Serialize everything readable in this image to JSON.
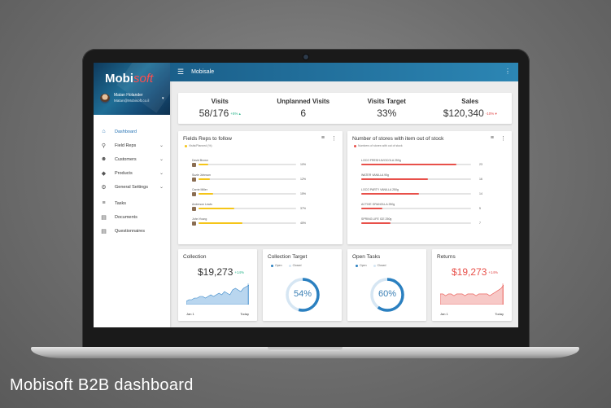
{
  "app": {
    "logo_main": "Mobi",
    "logo_accent": "soft",
    "title": "Mobisale",
    "user_name": "Matan Holander",
    "user_email": "Matan@Mobisoft.co.il"
  },
  "sidebar": {
    "items": [
      {
        "label": "Dashboard",
        "icon": "home-icon",
        "glyph": "⌂",
        "chevron": false
      },
      {
        "label": "Field Reps",
        "icon": "location-icon",
        "glyph": "⚲",
        "chevron": true
      },
      {
        "label": "Customers",
        "icon": "people-icon",
        "glyph": "☻",
        "chevron": true
      },
      {
        "label": "Products",
        "icon": "tag-icon",
        "glyph": "◆",
        "chevron": true
      },
      {
        "label": "General Settings",
        "icon": "gear-icon",
        "glyph": "⚙",
        "chevron": true
      },
      {
        "label": "Tasks",
        "icon": "tasks-icon",
        "glyph": "≡",
        "chevron": false
      },
      {
        "label": "Documents",
        "icon": "document-icon",
        "glyph": "▤",
        "chevron": false
      },
      {
        "label": "Questionnaires",
        "icon": "questionnaire-icon",
        "glyph": "▤",
        "chevron": false
      }
    ]
  },
  "kpis": [
    {
      "label": "Visits",
      "value": "58/176",
      "delta": "+5%",
      "trend": "up"
    },
    {
      "label": "Unplanned Visits",
      "value": "6",
      "delta": "",
      "trend": ""
    },
    {
      "label": "Visits Target",
      "value": "33%",
      "delta": "",
      "trend": ""
    },
    {
      "label": "Sales",
      "value": "$120,340",
      "delta": "-10%",
      "trend": "down"
    }
  ],
  "field_reps": {
    "title": "Fields Reps to follow",
    "legend": "Visits/Planned (%)",
    "color": "#f5c518",
    "rows": [
      {
        "name": "David Brown",
        "pct": 10,
        "label": "10%"
      },
      {
        "name": "Suzie Johnson",
        "pct": 12,
        "label": "12%"
      },
      {
        "name": "Carrie Miller",
        "pct": 15,
        "label": "15%"
      },
      {
        "name": "Anderson Lewis",
        "pct": 37,
        "label": "37%"
      },
      {
        "name": "John Young",
        "pct": 45,
        "label": "45%"
      }
    ]
  },
  "stores": {
    "title": "Number of stores with item out of stock",
    "legend": "Numbers of stores with out of stock",
    "color": "#e8504a",
    "max": 23,
    "rows": [
      {
        "name": "LOCO FRESH AVOCOLA 250g",
        "value": 23,
        "label": "23"
      },
      {
        "name": "WATER VANILLA 90g",
        "value": 16,
        "label": "16"
      },
      {
        "name": "LOCO PARTY VANILLA 250g",
        "value": 14,
        "label": "14"
      },
      {
        "name": "ACTIVE GRANOLLA 250g",
        "value": 5,
        "label": "5"
      },
      {
        "name": "SPRING LIFE ICE 250g",
        "value": 7,
        "label": "7"
      }
    ]
  },
  "collection": {
    "title": "Collection",
    "value": "$19,273",
    "delta": "+14%",
    "start_label": "Jan 1",
    "end_label": "Today",
    "color": "#3a88c8",
    "series": [
      2,
      3,
      3,
      4,
      4,
      5,
      5,
      4,
      5,
      6,
      5,
      6,
      7,
      6,
      8,
      7,
      6,
      9,
      10,
      9,
      8,
      10,
      11,
      12
    ]
  },
  "collection_target": {
    "title": "Collection Target",
    "legend_open": "Open",
    "legend_closed": "Closed",
    "pct": 54,
    "label": "54%",
    "open_color": "#2b80c0",
    "closed_color": "#d6e6f3"
  },
  "open_tasks": {
    "title": "Open Tasks",
    "legend_open": "Open",
    "legend_closed": "Closed",
    "pct": 60,
    "label": "60%",
    "open_color": "#2b80c0",
    "closed_color": "#d6e6f3"
  },
  "returns": {
    "title": "Returns",
    "value": "$19,273",
    "delta": "+14%",
    "start_label": "Jan 1",
    "end_label": "Today",
    "color": "#e8504a",
    "series": [
      6,
      6,
      5,
      6,
      6,
      5,
      6,
      6,
      6,
      5,
      6,
      6,
      6,
      5,
      6,
      6,
      6,
      6,
      5,
      6,
      7,
      8,
      9,
      11
    ]
  },
  "caption": "Mobisoft B2B dashboard"
}
